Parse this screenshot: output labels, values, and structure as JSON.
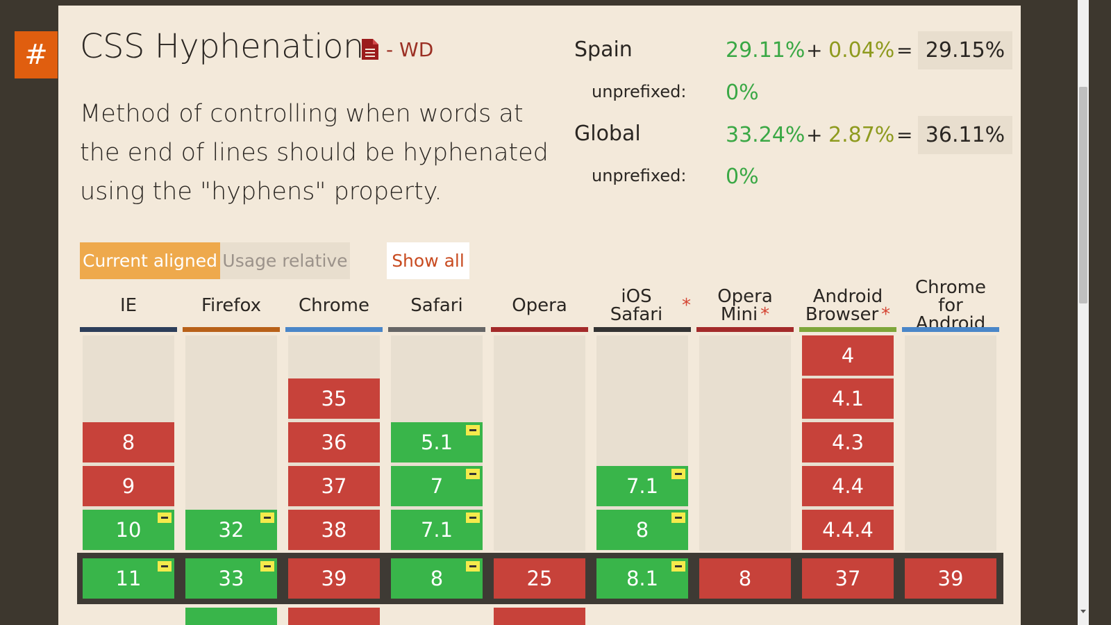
{
  "feature": {
    "anchor": "#",
    "title": "CSS Hyphenation",
    "status": "- WD",
    "description": "Method of controlling when words at the end of lines should be hyphenated using the \"hyphens\" property."
  },
  "stats": {
    "spain": {
      "label": "Spain",
      "full": "29.11%",
      "partial": "0.04%",
      "plus": "+",
      "equals": "=",
      "total": "29.15%",
      "unprefixed_label": "unprefixed:",
      "unprefixed": "0%"
    },
    "global": {
      "label": "Global",
      "full": "33.24%",
      "partial": "2.87%",
      "plus": "+",
      "equals": "=",
      "total": "36.11%",
      "unprefixed_label": "unprefixed:",
      "unprefixed": "0%"
    }
  },
  "tabs": {
    "current_aligned": "Current aligned",
    "usage_relative": "Usage relative",
    "show_all": "Show all"
  },
  "colors": {
    "supported": "#39b54a",
    "not_supported": "#c7423a",
    "accent": "#e05e0f"
  },
  "browsers": [
    {
      "line1": "IE",
      "line2": "",
      "star": "",
      "color": "#2c3e5a"
    },
    {
      "line1": "Firefox",
      "line2": "",
      "star": "",
      "color": "#b86119"
    },
    {
      "line1": "Chrome",
      "line2": "",
      "star": "",
      "color": "#4a86c8"
    },
    {
      "line1": "Safari",
      "line2": "",
      "star": "",
      "color": "#666666"
    },
    {
      "line1": "Opera",
      "line2": "",
      "star": "",
      "color": "#a32a2a"
    },
    {
      "line1": "iOS Safari",
      "line2": "",
      "star": "*",
      "color": "#333333"
    },
    {
      "line1": "Opera",
      "line2": "Mini",
      "star": "*",
      "color": "#a32a2a"
    },
    {
      "line1": "Android",
      "line2": "Browser",
      "star": "*",
      "color": "#7fa63a"
    },
    {
      "line1": "Chrome for",
      "line2": "Android",
      "star": "",
      "color": "#4a86c8"
    }
  ],
  "versions": {
    "ie": {
      "past": [
        {
          "v": "8",
          "s": "n"
        },
        {
          "v": "9",
          "s": "n"
        },
        {
          "v": "10",
          "s": "y",
          "note": true
        }
      ],
      "current": {
        "v": "11",
        "s": "y",
        "note": true
      }
    },
    "firefox": {
      "past": [
        {
          "v": "32",
          "s": "y",
          "note": true
        }
      ],
      "current": {
        "v": "33",
        "s": "y",
        "note": true
      }
    },
    "chrome": {
      "past": [
        {
          "v": "35",
          "s": "n"
        },
        {
          "v": "36",
          "s": "n"
        },
        {
          "v": "37",
          "s": "n"
        },
        {
          "v": "38",
          "s": "n"
        }
      ],
      "current": {
        "v": "39",
        "s": "n"
      }
    },
    "safari": {
      "past": [
        {
          "v": "5.1",
          "s": "y",
          "note": true
        },
        {
          "v": "7",
          "s": "y",
          "note": true
        },
        {
          "v": "7.1",
          "s": "y",
          "note": true
        }
      ],
      "current": {
        "v": "8",
        "s": "y",
        "note": true
      }
    },
    "opera": {
      "past": [],
      "current": {
        "v": "25",
        "s": "n"
      }
    },
    "ios_safari": {
      "past": [
        {
          "v": "7.1",
          "s": "y",
          "note": true
        },
        {
          "v": "8",
          "s": "y",
          "note": true
        }
      ],
      "current": {
        "v": "8.1",
        "s": "y",
        "note": true
      }
    },
    "opera_mini": {
      "past": [],
      "current": {
        "v": "8",
        "s": "n"
      }
    },
    "android": {
      "past": [
        {
          "v": "4",
          "s": "n"
        },
        {
          "v": "4.1",
          "s": "n"
        },
        {
          "v": "4.3",
          "s": "n"
        },
        {
          "v": "4.4",
          "s": "n"
        },
        {
          "v": "4.4.4",
          "s": "n"
        }
      ],
      "current": {
        "v": "37",
        "s": "n"
      }
    },
    "chrome_android": {
      "past": [],
      "current": {
        "v": "39",
        "s": "n"
      }
    }
  }
}
